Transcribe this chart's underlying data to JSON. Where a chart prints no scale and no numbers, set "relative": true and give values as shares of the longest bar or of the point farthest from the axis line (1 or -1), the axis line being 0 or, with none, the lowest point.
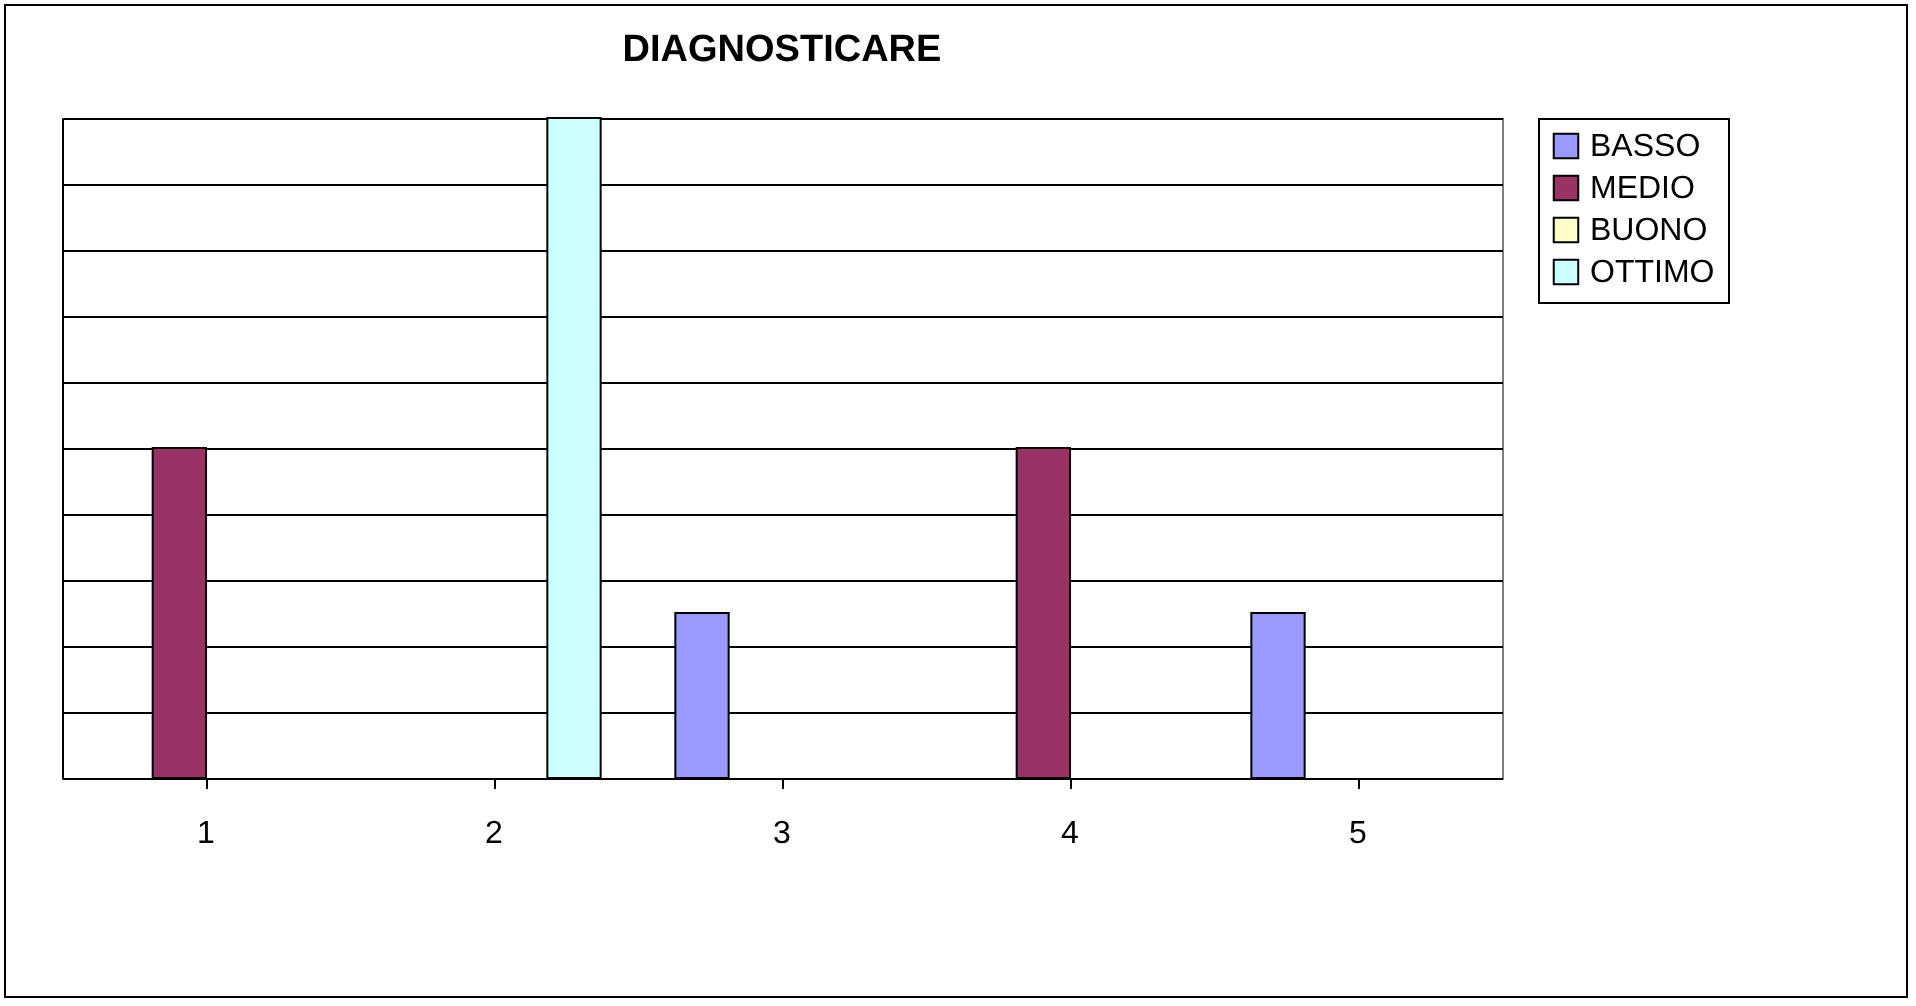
{
  "chart_data": {
    "type": "bar",
    "title": "DIAGNOSTICARE",
    "relative": true,
    "categories": [
      "1",
      "2",
      "3",
      "4",
      "5"
    ],
    "series": [
      {
        "name": "BASSO",
        "color": "#9999ff",
        "values": [
          null,
          null,
          0.25,
          null,
          0.25
        ]
      },
      {
        "name": "MEDIO",
        "color": "#993366",
        "values": [
          0.5,
          null,
          null,
          0.5,
          null
        ]
      },
      {
        "name": "BUONO",
        "color": "#ffffcc",
        "values": [
          null,
          null,
          null,
          null,
          null
        ]
      },
      {
        "name": "OTTIMO",
        "color": "#ccffff",
        "values": [
          null,
          1,
          null,
          null,
          null
        ]
      }
    ],
    "grid": "y",
    "legend": "right"
  }
}
